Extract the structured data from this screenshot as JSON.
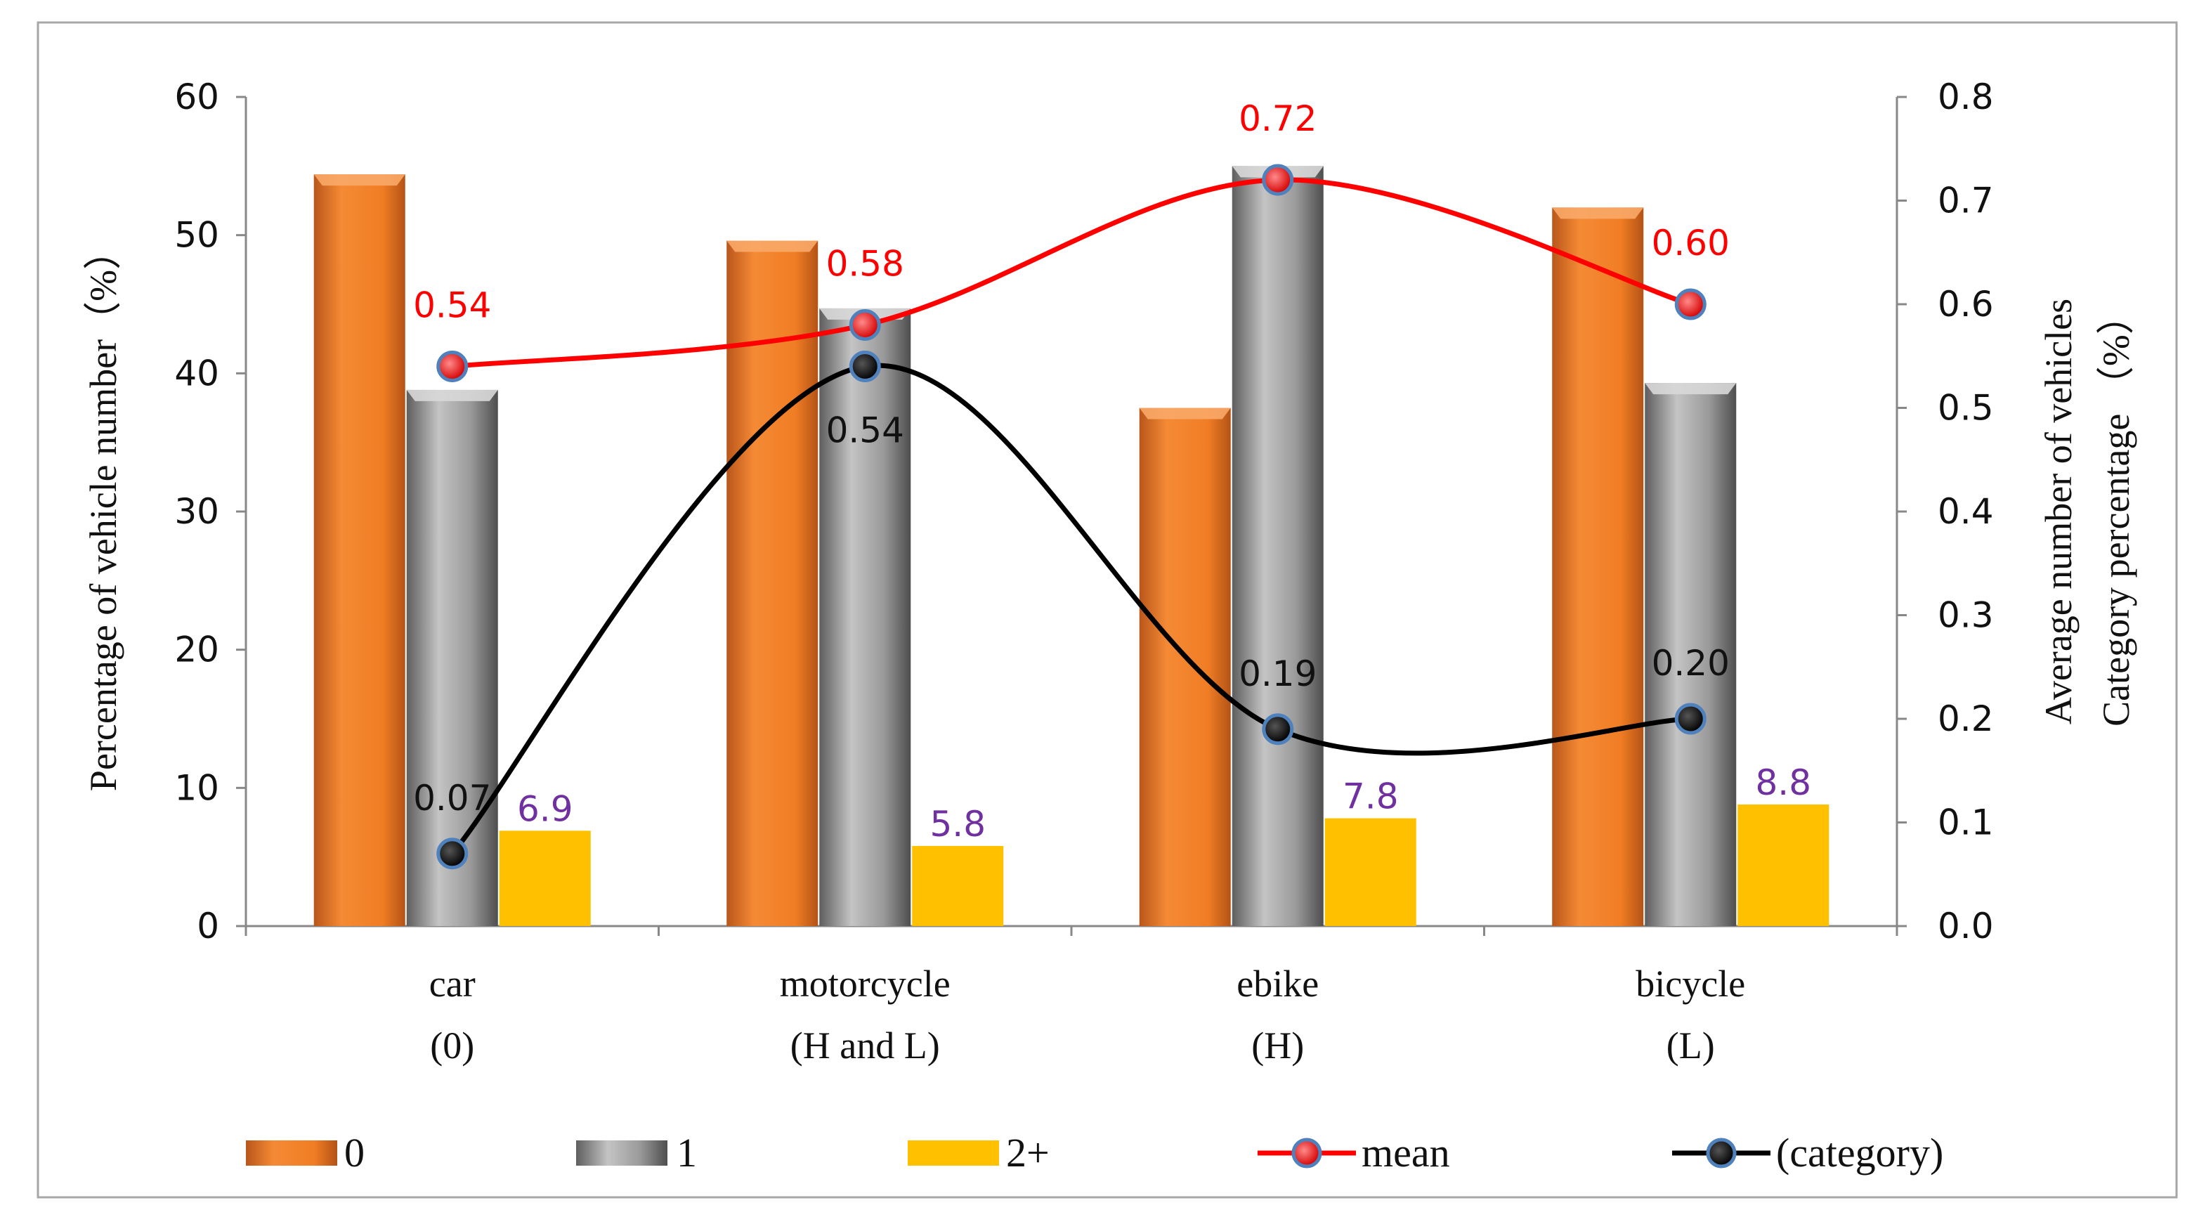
{
  "chart_data": {
    "type": "bar",
    "categories": [
      "car",
      "motorcycle",
      "ebike",
      "bicycle"
    ],
    "category_sublabels": [
      "(0)",
      "(H and L)",
      "(H)",
      "(L)"
    ],
    "series": [
      {
        "name": "0",
        "type": "bar",
        "axis": "left",
        "values": [
          54.4,
          49.6,
          37.5,
          52.0
        ]
      },
      {
        "name": "1",
        "type": "bar",
        "axis": "left",
        "values": [
          38.8,
          44.7,
          55.0,
          39.3
        ]
      },
      {
        "name": "2+",
        "type": "bar",
        "axis": "left",
        "values": [
          6.9,
          5.8,
          7.8,
          8.8
        ],
        "labels": [
          "6.9",
          "5.8",
          "7.8",
          "8.8"
        ]
      },
      {
        "name": "mean",
        "type": "line",
        "axis": "right",
        "values": [
          0.54,
          0.58,
          0.72,
          0.6
        ],
        "labels": [
          "0.54",
          "0.58",
          "0.72",
          "0.60"
        ]
      },
      {
        "name": "(category)",
        "type": "line",
        "axis": "right",
        "values": [
          0.07,
          0.54,
          0.19,
          0.2
        ],
        "labels": [
          "0.07",
          "0.54",
          "0.19",
          "0.20"
        ]
      }
    ],
    "left_axis": {
      "label": "Percentage of vehicle number（%）",
      "ylim": [
        0,
        60
      ],
      "ticks": [
        "0",
        "10",
        "20",
        "30",
        "40",
        "50",
        "60"
      ]
    },
    "right_axis": {
      "label_line1": "Average number of vehicles",
      "label_line2": "Category  percentage （%）",
      "ylim": [
        0.0,
        0.8
      ],
      "ticks": [
        "0.0",
        "0.1",
        "0.2",
        "0.3",
        "0.4",
        "0.5",
        "0.6",
        "0.7",
        "0.8"
      ]
    },
    "legend_position": "bottom",
    "grid": false
  },
  "colors": {
    "bar_0": "#f07d24",
    "bar_1": "#9a9a9a",
    "bar_2plus": "#ffc000",
    "mean_line": "#ff0000",
    "category_line": "#000000",
    "label_2plus": "#7030a0",
    "label_mean": "#ff0000",
    "marker_ring": "#4f81bd"
  }
}
